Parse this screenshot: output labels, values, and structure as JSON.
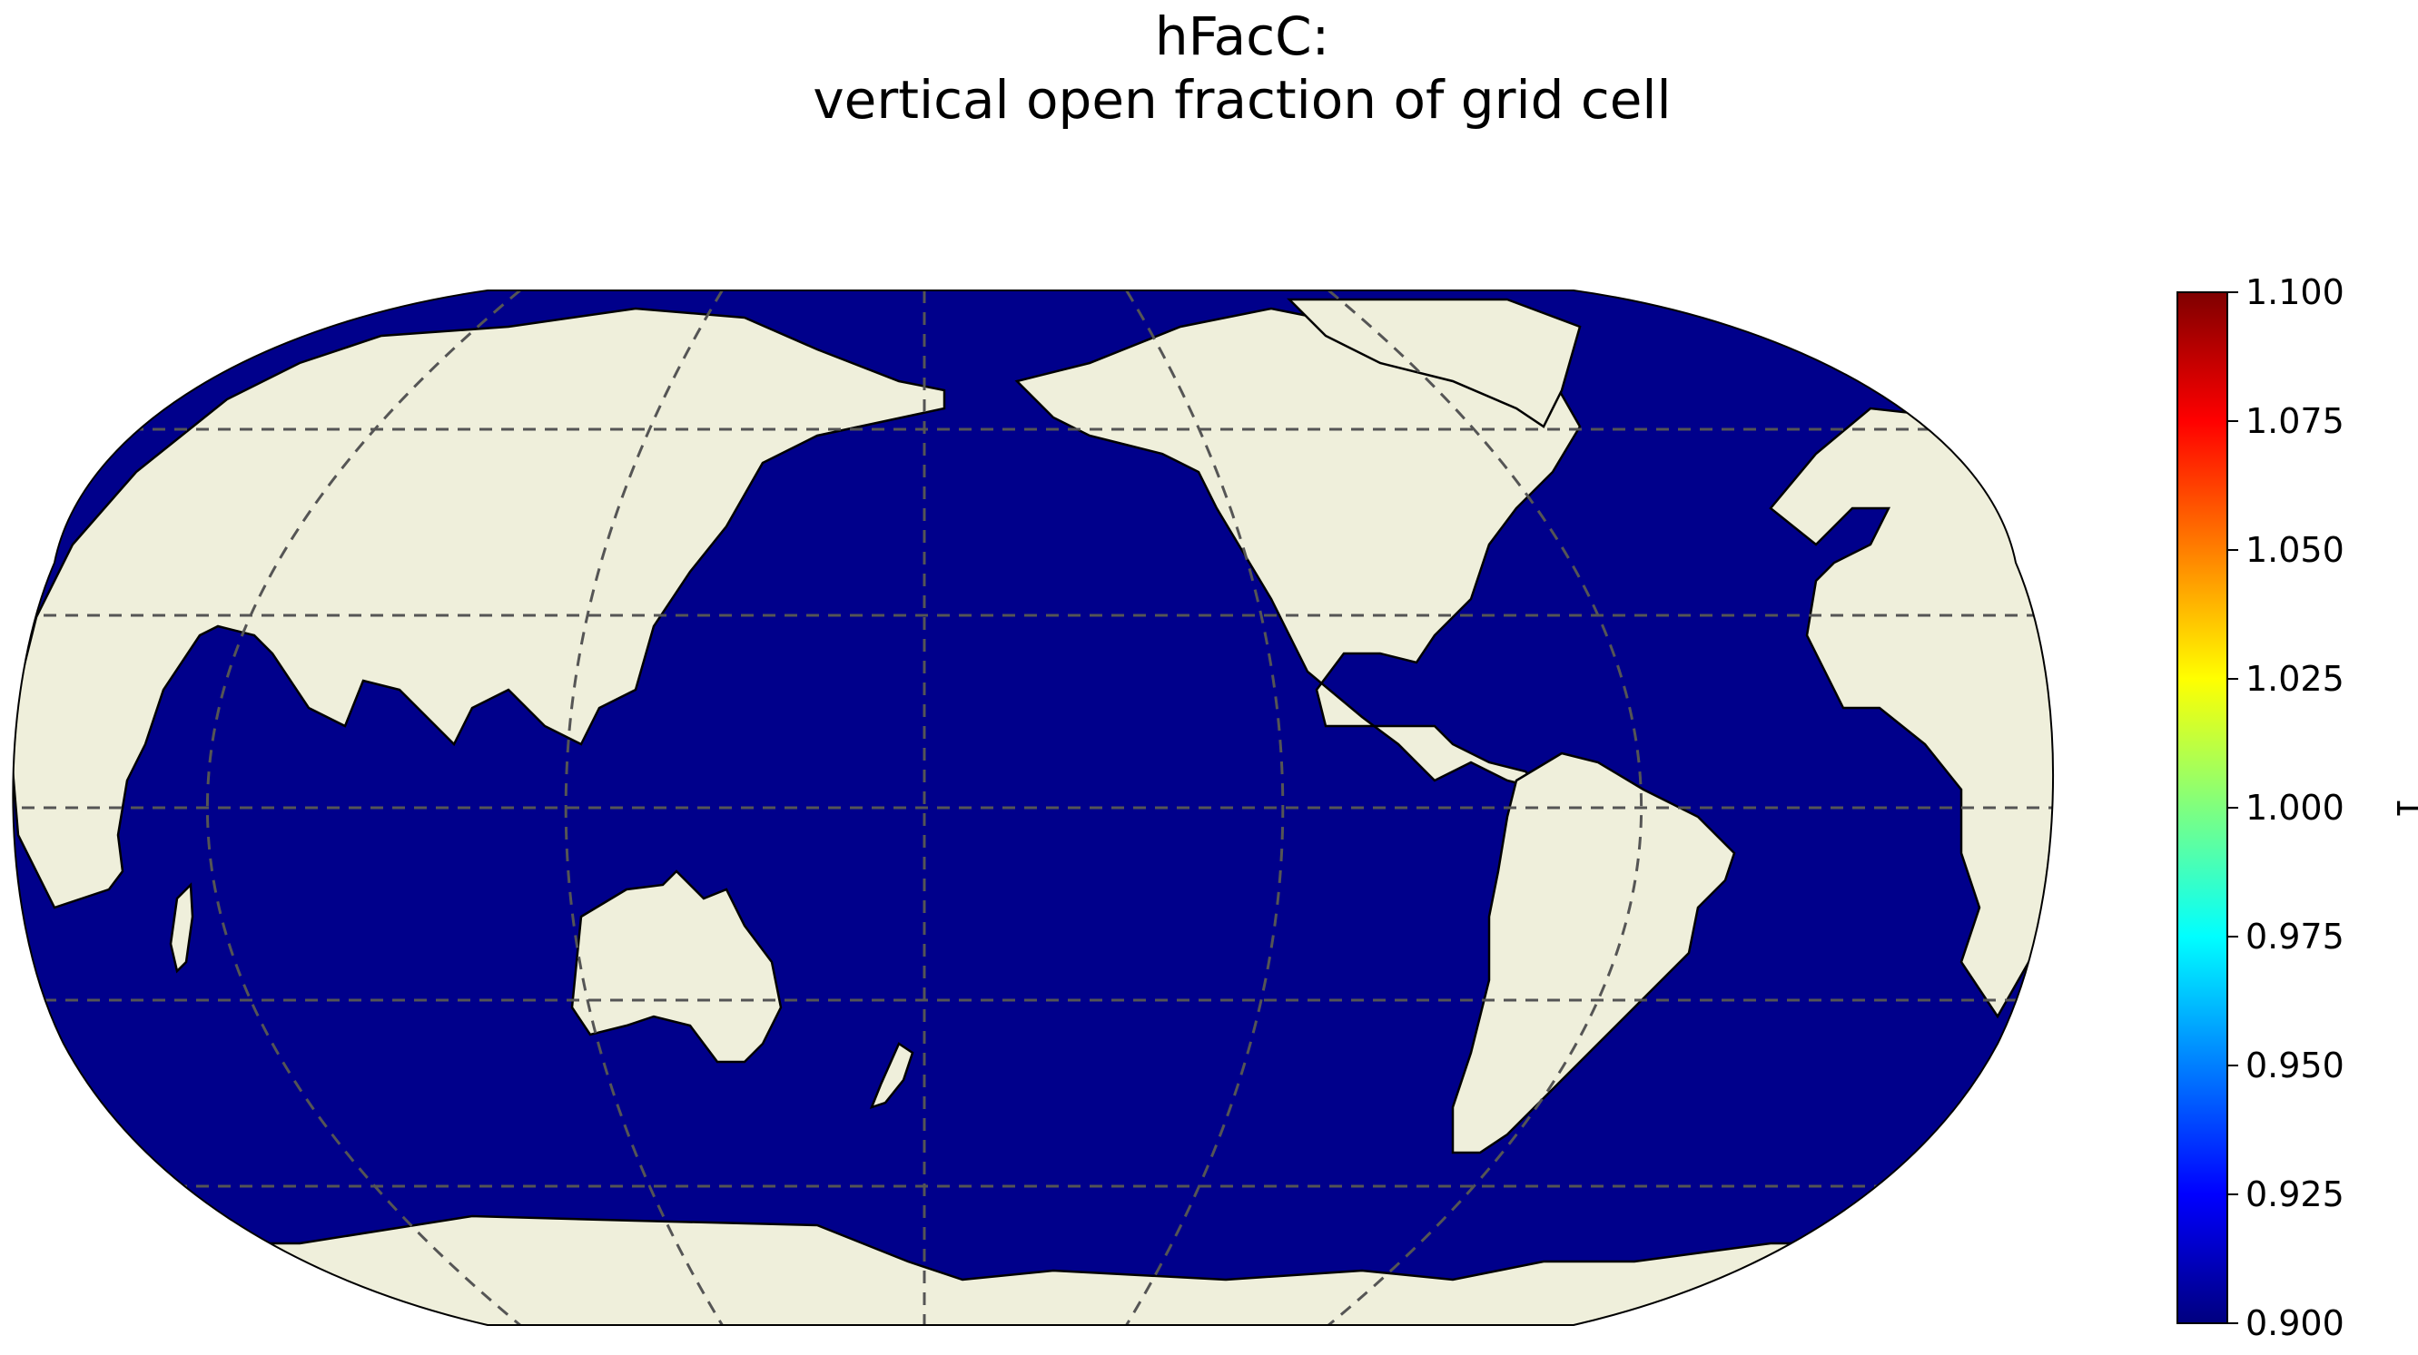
{
  "title": {
    "line1": "hFacC:",
    "line2": "vertical open fraction of grid cell"
  },
  "map": {
    "projection": "Robinson",
    "central_longitude": 180,
    "field_value": 0.9,
    "ocean_color": "#00008b",
    "land_color": "#efefdb",
    "coastline_color": "#000000",
    "gridlines": "dashed",
    "gridline_color": "#555555"
  },
  "colorbar": {
    "label": "1",
    "colormap": "jet",
    "range": [
      0.9,
      1.1
    ],
    "ticks": [
      "0.900",
      "0.925",
      "0.950",
      "0.975",
      "1.000",
      "1.025",
      "1.050",
      "1.075",
      "1.100"
    ],
    "stops": [
      "#00007f",
      "#0000ff",
      "#007fff",
      "#00ffff",
      "#7fff7f",
      "#ffff00",
      "#ff7f00",
      "#ff0000",
      "#7f0000"
    ]
  }
}
